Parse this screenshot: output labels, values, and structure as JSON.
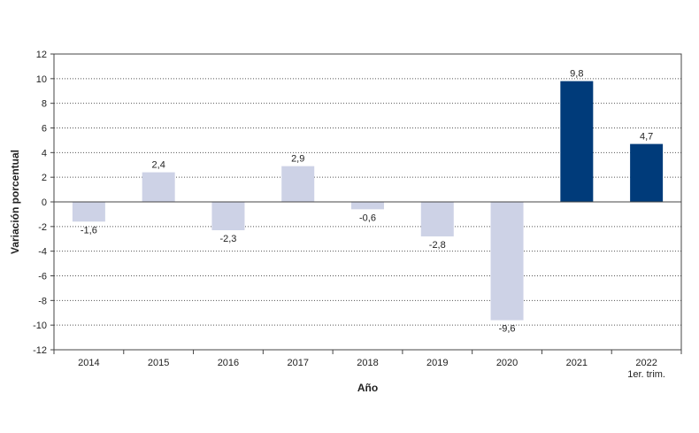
{
  "chart_data": {
    "type": "bar",
    "title": "",
    "xlabel": "Año",
    "ylabel": "Variación porcentual",
    "categories": [
      "2014",
      "2015",
      "2016",
      "2017",
      "2018",
      "2019",
      "2020",
      "2021",
      "2022"
    ],
    "category_sublabels": [
      "",
      "",
      "",
      "",
      "",
      "",
      "",
      "",
      "1er. trim."
    ],
    "values": [
      -1.6,
      2.4,
      -2.3,
      2.9,
      -0.6,
      -2.8,
      -9.6,
      9.8,
      4.7
    ],
    "value_labels": [
      "-1,6",
      "2,4",
      "-2,3",
      "2,9",
      "-0,6",
      "-2,8",
      "-9,6",
      "9,8",
      "4,7"
    ],
    "ylim": [
      -12,
      12
    ],
    "yticks": [
      -12,
      -10,
      -8,
      -6,
      -4,
      -2,
      0,
      2,
      4,
      6,
      8,
      10,
      12
    ],
    "ytick_labels": [
      "-12",
      "-10",
      "-8",
      "-6",
      "-4",
      "-2",
      "0",
      "2",
      "4",
      "6",
      "8",
      "10",
      "12"
    ],
    "grid": true,
    "colors": {
      "light_bar": "#cdd2e6",
      "dark_bar": "#003b7a",
      "grid": "#555555",
      "frame": "#444444"
    },
    "highlighted_categories": [
      "2021",
      "2022"
    ]
  }
}
